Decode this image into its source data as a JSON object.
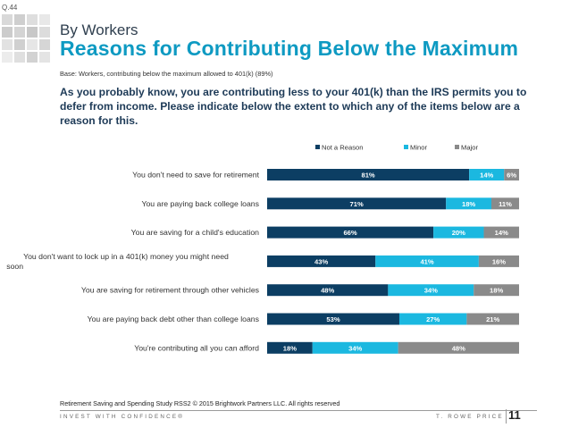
{
  "slide_tag": "Q.44",
  "supertitle": "By Workers",
  "title": "Reasons for Contributing Below the Maximum",
  "base_note": "Base: Workers, contributing below the maximum allowed to 401(k) (89%)",
  "question": "As you probably know, you are contributing less to your 401(k) than the IRS permits you to defer from income. Please indicate below the extent to which any of the items below are a reason for this.",
  "footnote": "Retirement Saving and Spending Study RSS2 © 2015 Brightwork Partners LLC. All rights reserved",
  "tagline": "INVEST WITH CONFIDENCE®",
  "brand": "T. ROWE PRICE",
  "page_number": "11",
  "colors": {
    "not_a_reason": "#0c3e63",
    "minor": "#1bb8e0",
    "major": "#8a8a8a",
    "accent": "#0e9ac2"
  },
  "chart_data": {
    "type": "bar",
    "orientation": "horizontal",
    "stacked": true,
    "legend_position": "top-right",
    "xlim": [
      0,
      100
    ],
    "categories": [
      "You don't need to save for retirement",
      "You are paying back college loans",
      "You are saving for a child's education",
      "You don't want to lock up in a 401(k) money you might need soon",
      "You are saving for retirement through other vehicles",
      "You are paying back debt other than college loans",
      "You're contributing all you can afford"
    ],
    "series": [
      {
        "name": "Not a Reason",
        "values": [
          81,
          71,
          66,
          43,
          48,
          53,
          18
        ]
      },
      {
        "name": "Minor",
        "values": [
          14,
          18,
          20,
          41,
          34,
          27,
          34
        ]
      },
      {
        "name": "Major",
        "values": [
          6,
          11,
          14,
          16,
          18,
          21,
          48
        ]
      }
    ]
  }
}
